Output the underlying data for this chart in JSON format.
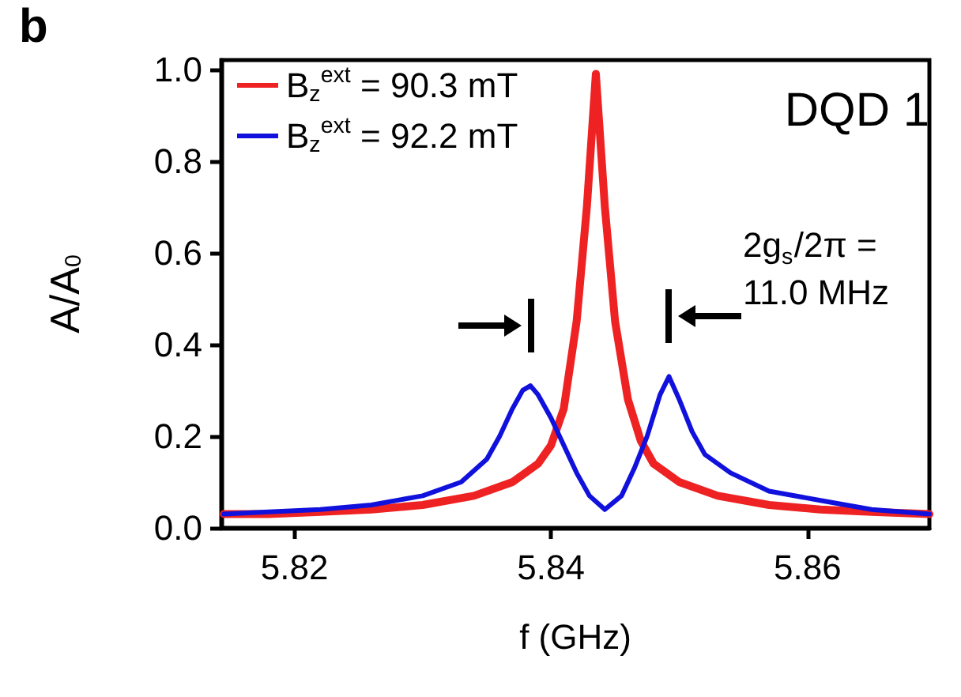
{
  "chart_data": {
    "type": "line",
    "xlabel": "f (GHz)",
    "ylabel": "A/A$_{0}$",
    "annotations": [
      "b",
      "DQD 1",
      "2g$_{s}$/2π = 11.0 MHz"
    ],
    "xlim": [
      5.8143,
      5.8695
    ],
    "xticks": [
      5.82,
      5.84,
      5.86
    ],
    "ylim": [
      0,
      1.02
    ],
    "yticks": [
      {
        "value": 0,
        "label": "0.0"
      },
      {
        "value": 0.2,
        "label": "0.2"
      },
      {
        "value": 0.4,
        "label": "0.4"
      },
      {
        "value": 0.6,
        "label": "0.6"
      },
      {
        "value": 0.8,
        "label": "0.8"
      },
      {
        "value": 1,
        "label": "1.0"
      }
    ],
    "legend": "top left",
    "grid": false,
    "marker": "none",
    "line_style": "solid",
    "series": [
      {
        "name": "B$_{z}$$^{ext}$ = 90.3 mT",
        "color": "#ee2222",
        "x": [
          5.8145,
          5.818,
          5.822,
          5.826,
          5.83,
          5.834,
          5.837,
          5.839,
          5.84,
          5.841,
          5.842,
          5.8428,
          5.8435,
          5.8442,
          5.845,
          5.846,
          5.847,
          5.848,
          5.85,
          5.853,
          5.857,
          5.861,
          5.865,
          5.8695
        ],
        "values": [
          0.03,
          0.03,
          0.035,
          0.04,
          0.05,
          0.07,
          0.1,
          0.14,
          0.18,
          0.26,
          0.45,
          0.7,
          0.99,
          0.7,
          0.45,
          0.28,
          0.19,
          0.14,
          0.1,
          0.07,
          0.05,
          0.04,
          0.035,
          0.03
        ]
      },
      {
        "name": "B$_{z}$$^{ext}$ = 92.2 mT",
        "color": "#1111dd",
        "x": [
          5.8145,
          5.818,
          5.822,
          5.826,
          5.83,
          5.833,
          5.835,
          5.836,
          5.837,
          5.8378,
          5.8384,
          5.839,
          5.84,
          5.841,
          5.842,
          5.843,
          5.8442,
          5.8455,
          5.8465,
          5.8475,
          5.8485,
          5.8492,
          5.85,
          5.851,
          5.852,
          5.854,
          5.857,
          5.861,
          5.865,
          5.8695
        ],
        "values": [
          0.03,
          0.035,
          0.04,
          0.05,
          0.07,
          0.1,
          0.15,
          0.2,
          0.26,
          0.3,
          0.31,
          0.29,
          0.24,
          0.18,
          0.12,
          0.07,
          0.04,
          0.07,
          0.13,
          0.2,
          0.29,
          0.33,
          0.28,
          0.21,
          0.16,
          0.12,
          0.08,
          0.06,
          0.04,
          0.03
        ]
      }
    ]
  }
}
